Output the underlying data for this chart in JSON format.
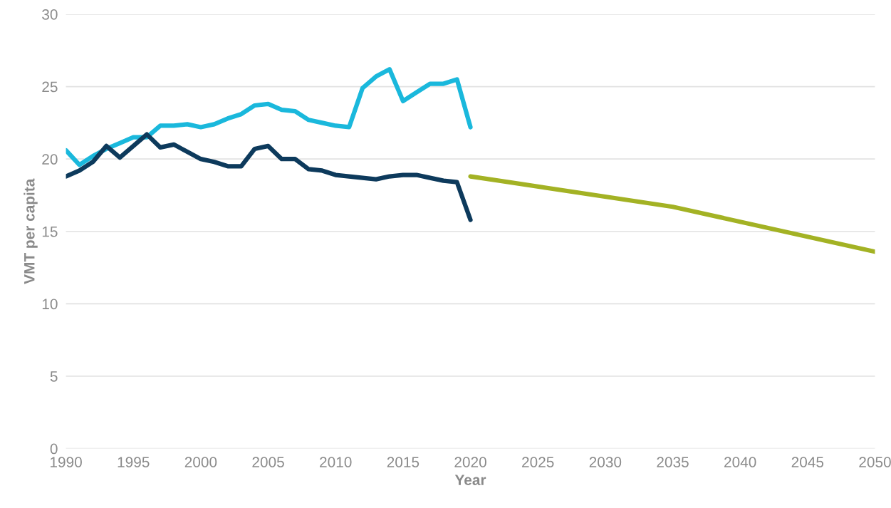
{
  "chart_data": {
    "type": "line",
    "xlabel": "Year",
    "ylabel": "VMT per capita",
    "xlim": [
      1990,
      2050
    ],
    "xticks": [
      1990,
      1995,
      2000,
      2005,
      2010,
      2015,
      2020,
      2025,
      2030,
      2035,
      2040,
      2045,
      2050
    ],
    "ylim": [
      0,
      30
    ],
    "yticks": [
      0,
      5,
      10,
      15,
      20,
      25,
      30
    ],
    "grid": "y",
    "line_style": "solid",
    "marker": "none",
    "series": [
      {
        "color": "#1ab8dc",
        "x": [
          1990,
          1991,
          1992,
          1993,
          1994,
          1995,
          1996,
          1997,
          1998,
          1999,
          2000,
          2001,
          2002,
          2003,
          2004,
          2005,
          2006,
          2007,
          2008,
          2009,
          2010,
          2011,
          2012,
          2013,
          2014,
          2015,
          2016,
          2017,
          2018,
          2019,
          2020
        ],
        "values": [
          20.6,
          19.6,
          20.2,
          20.7,
          21.1,
          21.5,
          21.5,
          22.3,
          22.3,
          22.4,
          22.2,
          22.4,
          22.8,
          23.1,
          23.7,
          23.8,
          23.4,
          23.3,
          22.7,
          22.5,
          22.3,
          22.2,
          24.9,
          25.7,
          26.2,
          24.0,
          24.6,
          25.2,
          25.2,
          25.5,
          22.2
        ]
      },
      {
        "color": "#0d3a5c",
        "x": [
          1990,
          1991,
          1992,
          1993,
          1994,
          1995,
          1996,
          1997,
          1998,
          1999,
          2000,
          2001,
          2002,
          2003,
          2004,
          2005,
          2006,
          2007,
          2008,
          2009,
          2010,
          2011,
          2012,
          2013,
          2014,
          2015,
          2016,
          2017,
          2018,
          2019,
          2020
        ],
        "values": [
          18.8,
          19.2,
          19.8,
          20.9,
          20.1,
          20.9,
          21.7,
          20.8,
          21.0,
          20.5,
          20.0,
          19.8,
          19.5,
          19.5,
          20.7,
          20.9,
          20.0,
          20.0,
          19.3,
          19.2,
          18.9,
          18.8,
          18.7,
          18.6,
          18.8,
          18.9,
          18.9,
          18.7,
          18.5,
          18.4,
          15.8
        ]
      },
      {
        "color": "#a3b224",
        "x": [
          2020,
          2035,
          2050
        ],
        "values": [
          18.8,
          16.7,
          13.6
        ]
      }
    ]
  }
}
